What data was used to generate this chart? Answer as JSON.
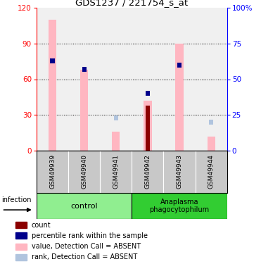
{
  "title": "GDS1237 / 221754_s_at",
  "samples": [
    "GSM49939",
    "GSM49940",
    "GSM49941",
    "GSM49942",
    "GSM49943",
    "GSM49944"
  ],
  "value_absent": [
    110,
    68,
    16,
    42,
    90,
    12
  ],
  "rank_absent_pct": [
    null,
    null,
    23,
    null,
    null,
    20
  ],
  "count_value": [
    null,
    null,
    null,
    38,
    null,
    null
  ],
  "percentile_rank_pct": [
    63,
    57,
    null,
    40,
    60,
    null
  ],
  "ylim_left": [
    0,
    120
  ],
  "ylim_right": [
    0,
    100
  ],
  "yticks_left": [
    0,
    30,
    60,
    90,
    120
  ],
  "yticks_right": [
    0,
    25,
    50,
    75,
    100
  ],
  "color_count": "#8b0000",
  "color_percentile": "#00008b",
  "color_value_absent": "#ffb6c1",
  "color_rank_absent": "#b0c4de",
  "bar_width": 0.25,
  "legend_items": [
    "count",
    "percentile rank within the sample",
    "value, Detection Call = ABSENT",
    "rank, Detection Call = ABSENT"
  ],
  "bg_color": "#f0f0f0",
  "group_colors": [
    "#90ee90",
    "#32cd32"
  ],
  "label_bg": "#c8c8c8"
}
